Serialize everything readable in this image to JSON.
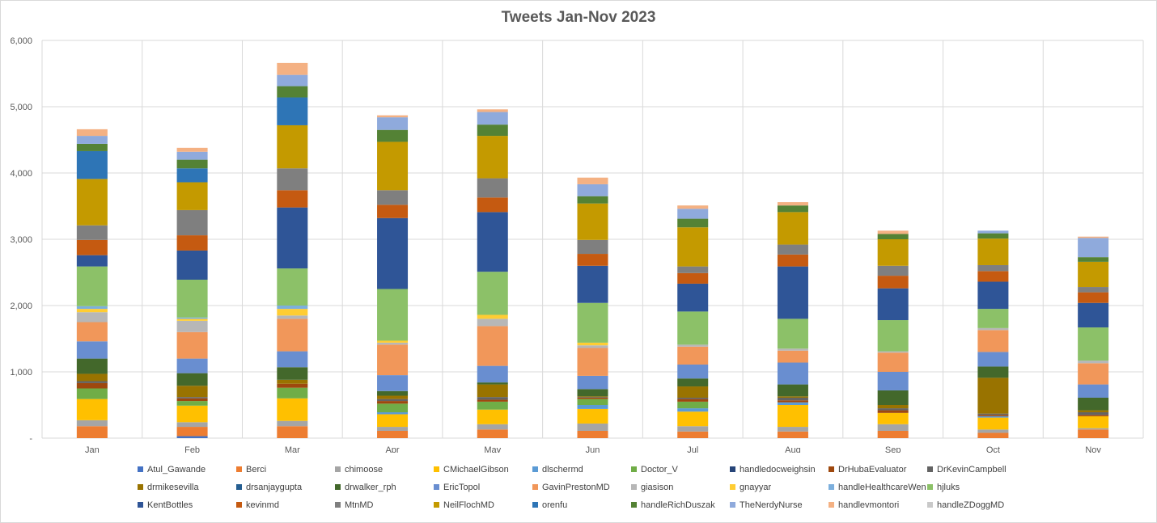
{
  "chart_data": {
    "type": "bar",
    "stacked": true,
    "title": "Tweets Jan-Nov 2023",
    "categories": [
      "Jan",
      "Feb",
      "Mar",
      "Apr",
      "May",
      "Jun",
      "Jul",
      "Aug",
      "Sep",
      "Oct",
      "Nov"
    ],
    "ylim": [
      0,
      6000
    ],
    "yticks": [
      "-",
      "1,000",
      "2,000",
      "3,000",
      "4,000",
      "5,000",
      "6,000"
    ],
    "grid": true,
    "legend_position": "bottom",
    "series": [
      {
        "name": "Atul_Gawande",
        "color": "#4472C4",
        "values": [
          0,
          30,
          0,
          0,
          0,
          0,
          0,
          0,
          0,
          0,
          0
        ]
      },
      {
        "name": "Berci",
        "color": "#ED7D31",
        "values": [
          180,
          140,
          180,
          110,
          130,
          110,
          100,
          100,
          110,
          80,
          130
        ]
      },
      {
        "name": "chimoose",
        "color": "#A5A5A5",
        "values": [
          90,
          70,
          80,
          60,
          80,
          110,
          80,
          70,
          100,
          50,
          20
        ]
      },
      {
        "name": "CMichaelGibson",
        "color": "#FFC000",
        "values": [
          320,
          250,
          340,
          190,
          220,
          220,
          220,
          330,
          170,
          180,
          180
        ]
      },
      {
        "name": "dlschermd",
        "color": "#5B9BD5",
        "values": [
          0,
          0,
          0,
          30,
          0,
          60,
          50,
          40,
          0,
          20,
          0
        ]
      },
      {
        "name": "Doctor_V",
        "color": "#70AD47",
        "values": [
          160,
          70,
          160,
          130,
          120,
          90,
          100,
          0,
          0,
          0,
          0
        ]
      },
      {
        "name": "handledocweighsin",
        "color": "#264478",
        "values": [
          0,
          0,
          0,
          0,
          0,
          0,
          0,
          0,
          0,
          0,
          0
        ]
      },
      {
        "name": "DrHubaEvaluator",
        "color": "#9E480E",
        "values": [
          80,
          40,
          60,
          40,
          30,
          20,
          40,
          30,
          40,
          20,
          20
        ]
      },
      {
        "name": "DrKevinCampbell",
        "color": "#636363",
        "values": [
          30,
          20,
          0,
          30,
          40,
          10,
          20,
          40,
          30,
          20,
          40
        ]
      },
      {
        "name": "drmikesevilla",
        "color": "#997300",
        "values": [
          110,
          170,
          60,
          50,
          190,
          10,
          170,
          20,
          50,
          540,
          30
        ]
      },
      {
        "name": "drsanjaygupta",
        "color": "#255E91",
        "values": [
          0,
          0,
          0,
          0,
          0,
          0,
          0,
          0,
          0,
          0,
          0
        ]
      },
      {
        "name": "drwalker_rph",
        "color": "#43682B",
        "values": [
          230,
          190,
          190,
          70,
          30,
          110,
          120,
          180,
          220,
          170,
          190
        ]
      },
      {
        "name": "EricTopol",
        "color": "#698ED0",
        "values": [
          260,
          220,
          240,
          240,
          250,
          200,
          210,
          330,
          280,
          220,
          200
        ]
      },
      {
        "name": "GavinPrestonMD",
        "color": "#F1975A",
        "values": [
          290,
          400,
          490,
          460,
          600,
          420,
          270,
          180,
          290,
          330,
          320
        ]
      },
      {
        "name": "giasison",
        "color": "#B7B7B7",
        "values": [
          150,
          170,
          50,
          30,
          110,
          40,
          30,
          30,
          20,
          30,
          40
        ]
      },
      {
        "name": "gnayyar",
        "color": "#FFCD33",
        "values": [
          50,
          30,
          100,
          30,
          60,
          40,
          0,
          0,
          0,
          0,
          0
        ]
      },
      {
        "name": "handleHealthcareWen",
        "color": "#7CAFDD",
        "values": [
          40,
          20,
          50,
          0,
          0,
          0,
          0,
          0,
          0,
          0,
          0
        ]
      },
      {
        "name": "hjluks",
        "color": "#8CC168",
        "values": [
          600,
          570,
          560,
          780,
          650,
          600,
          500,
          450,
          470,
          290,
          500
        ]
      },
      {
        "name": "KentBottles",
        "color": "#2F5597",
        "values": [
          170,
          440,
          920,
          1070,
          900,
          560,
          420,
          790,
          480,
          410,
          370
        ]
      },
      {
        "name": "kevinmd",
        "color": "#C55A11",
        "values": [
          230,
          230,
          260,
          200,
          220,
          180,
          160,
          180,
          190,
          160,
          160
        ]
      },
      {
        "name": "MtnMD",
        "color": "#7F7F7F",
        "values": [
          220,
          380,
          330,
          220,
          290,
          210,
          100,
          150,
          150,
          90,
          80
        ]
      },
      {
        "name": "NeilFlochMD",
        "color": "#C49A00",
        "values": [
          700,
          420,
          650,
          730,
          640,
          550,
          590,
          490,
          400,
          400,
          380
        ]
      },
      {
        "name": "orenfu",
        "color": "#2E75B6",
        "values": [
          420,
          210,
          420,
          0,
          0,
          0,
          0,
          0,
          0,
          0,
          0
        ]
      },
      {
        "name": "handleRichDuszak",
        "color": "#548235",
        "values": [
          110,
          130,
          170,
          180,
          170,
          110,
          130,
          100,
          80,
          80,
          70
        ]
      },
      {
        "name": "TheNerdyNurse",
        "color": "#8FAADC",
        "values": [
          120,
          120,
          170,
          190,
          190,
          180,
          150,
          0,
          0,
          40,
          290
        ]
      },
      {
        "name": "handlevmontori",
        "color": "#F4B183",
        "values": [
          100,
          60,
          180,
          30,
          40,
          100,
          50,
          50,
          50,
          0,
          20
        ]
      },
      {
        "name": "handleZDoggMD",
        "color": "#C9C9C9",
        "values": [
          0,
          0,
          0,
          0,
          0,
          0,
          0,
          0,
          0,
          0,
          0
        ]
      }
    ]
  }
}
